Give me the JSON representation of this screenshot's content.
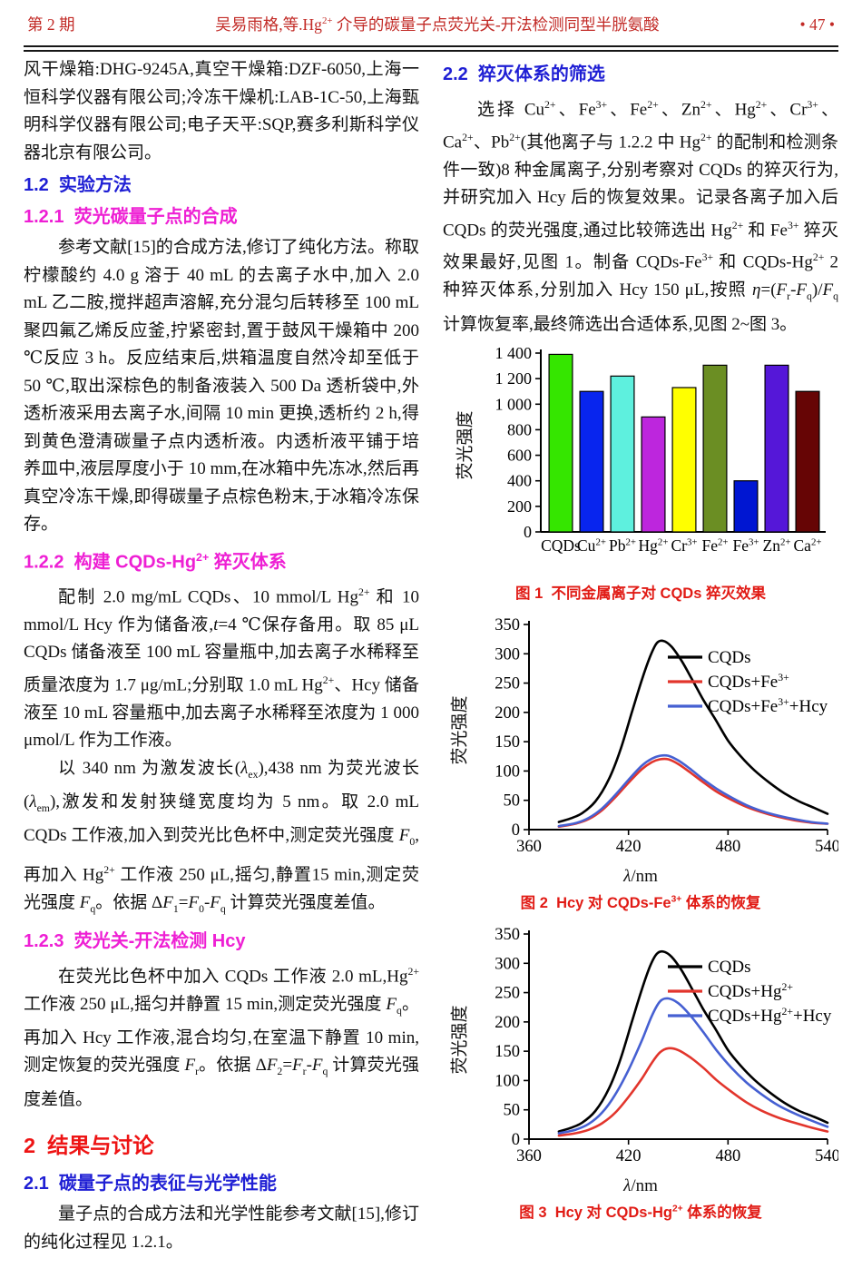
{
  "header": {
    "issue": "第 2 期",
    "title_html": "吴易雨格,等.Hg<sup>2+</sup> 介导的碳量子点荧光关-开法检测同型半胱氨酸",
    "page": "• 47 •"
  },
  "left_column": {
    "blocks": [
      {
        "kind": "p-cont",
        "html": "风干燥箱:DHG-9245A,真空干燥箱:DZF-6050,上海一恒科学仪器有限公司;冷冻干燥机:LAB-1C-50,上海甄明科学仪器有限公司;电子天平:SQP,赛多利斯科学仪器北京有限公司。"
      },
      {
        "kind": "h2b",
        "html": "1.2&nbsp;&nbsp;实验方法"
      },
      {
        "kind": "h3m",
        "html": "1.2.1&nbsp;&nbsp;荧光碳量子点的合成"
      },
      {
        "kind": "p",
        "html": "参考文献[15]的合成方法,修订了纯化方法。称取柠檬酸约 4.0 g 溶于 40 mL 的去离子水中,加入 2.0 mL 乙二胺,搅拌超声溶解,充分混匀后转移至 100 mL 聚四氟乙烯反应釜,拧紧密封,置于鼓风干燥箱中 200 ℃反应 3 h。反应结束后,烘箱温度自然冷却至低于 50 ℃,取出深棕色的制备液装入 500 Da 透析袋中,外透析液采用去离子水,间隔 10 min 更换,透析约 2 h,得到黄色澄清碳量子点内透析液。内透析液平铺于培养皿中,液层厚度小于 10 mm,在冰箱中先冻冰,然后再真空冷冻干燥,即得碳量子点棕色粉末,于冰箱冷冻保存。"
      },
      {
        "kind": "h3m",
        "html": "1.2.2&nbsp;&nbsp;构建 CQDs-Hg<sup>2+</sup> 猝灭体系"
      },
      {
        "kind": "p",
        "html": "配制 2.0 mg/mL CQDs、10 mmol/L Hg<sup>2+</sup> 和 10 mmol/L Hcy 作为储备液,<i>t</i>=4 ℃保存备用。取 85 μL CQDs 储备液至 100 mL 容量瓶中,加去离子水稀释至质量浓度为 1.7 μg/mL;分别取 1.0 mL Hg<sup>2+</sup>、Hcy 储备液至 10 mL 容量瓶中,加去离子水稀释至浓度为 1 000 μmol/L 作为工作液。"
      },
      {
        "kind": "p",
        "html": "以 340 nm 为激发波长(<i>λ</i><sub>ex</sub>),438 nm 为荧光波长(<i>λ</i><sub>em</sub>),激发和发射狭缝宽度均为 5 nm。取 2.0 mL CQDs 工作液,加入到荧光比色杯中,测定荧光强度 <i>F</i><sub>0</sub>,再加入 Hg<sup>2+</sup> 工作液 250 μL,摇匀,静置15 min,测定荧光强度 <i>F</i><sub>q</sub>。依据 Δ<i>F</i><sub>1</sub>=<i>F</i><sub>0</sub>-<i>F</i><sub>q</sub> 计算荧光强度差值。"
      },
      {
        "kind": "h3m",
        "html": "1.2.3&nbsp;&nbsp;荧光关-开法检测 Hcy"
      },
      {
        "kind": "p",
        "html": "在荧光比色杯中加入 CQDs 工作液 2.0 mL,Hg<sup>2+</sup> 工作液 250 μL,摇匀并静置 15 min,测定荧光强度 <i>F</i><sub>q</sub>。再加入 Hcy 工作液,混合均匀,在室温下静置 10 min,测定恢复的荧光强度 <i>F</i><sub>r</sub>。依据 Δ<i>F</i><sub>2</sub>=<i>F</i><sub>r</sub>-<i>F</i><sub>q</sub> 计算荧光强度差值。"
      },
      {
        "kind": "h1r",
        "html": "2&nbsp;&nbsp;结果与讨论"
      },
      {
        "kind": "h2b",
        "html": "2.1&nbsp;&nbsp;碳量子点的表征与光学性能"
      },
      {
        "kind": "p",
        "html": "量子点的合成方法和光学性能参考文献[15],修订的纯化过程见 1.2.1。"
      }
    ]
  },
  "right_column": {
    "blocks": [
      {
        "kind": "h2b",
        "html": "2.2&nbsp;&nbsp;猝灭体系的筛选"
      },
      {
        "kind": "p",
        "html": "选择 Cu<sup>2+</sup>、Fe<sup>3+</sup>、Fe<sup>2+</sup>、Zn<sup>2+</sup>、Hg<sup>2+</sup>、Cr<sup>3+</sup>、Ca<sup>2+</sup>、Pb<sup>2+</sup>(其他离子与 1.2.2 中 Hg<sup>2+</sup> 的配制和检测条件一致)8 种金属离子,分别考察对 CQDs 的猝灭行为,并研究加入 Hcy 后的恢复效果。记录各离子加入后 CQDs 的荧光强度,通过比较筛选出 Hg<sup>2+</sup> 和 Fe<sup>3+</sup> 猝灭效果最好,见图 1。制备 CQDs-Fe<sup>3+</sup> 和 CQDs-Hg<sup>2+</sup> 2 种猝灭体系,分别加入 Hcy 150 μL,按照 <i>η</i>=(<i>F</i><sub>r</sub>-<i>F</i><sub>q</sub>)/<i>F</i><sub>q</sub> 计算恢复率,最终筛选出合适体系,见图 2~图 3。"
      },
      {
        "kind": "figure",
        "chart": 0,
        "caption_html": "图 1&nbsp;&nbsp;不同金属离子对 CQDs 猝灭效果"
      },
      {
        "kind": "figure",
        "chart": 1,
        "caption_html": "图 2&nbsp;&nbsp;Hcy 对 CQDs-Fe<sup>3+</sup> 体系的恢复"
      },
      {
        "kind": "figure",
        "chart": 2,
        "caption_html": "图 3&nbsp;&nbsp;Hcy 对 CQDs-Hg<sup>2+</sup> 体系的恢复"
      }
    ]
  },
  "chart_data": [
    {
      "type": "bar",
      "title": "图 1 不同金属离子对 CQDs 猝灭效果",
      "ylabel": "荧光强度",
      "xlabel": "",
      "ylim": [
        0,
        1400
      ],
      "yticks": [
        {
          "v": 0,
          "label": "0"
        },
        {
          "v": 200,
          "label": "200"
        },
        {
          "v": 400,
          "label": "400"
        },
        {
          "v": 600,
          "label": "600"
        },
        {
          "v": 800,
          "label": "800"
        },
        {
          "v": 1000,
          "label": "1 000"
        },
        {
          "v": 1200,
          "label": "1 200"
        },
        {
          "v": 1400,
          "label": "1 400"
        }
      ],
      "categories": [
        "CQDs",
        "Cu^{2+}",
        "Pb^{2+}",
        "Hg^{2+}",
        "Cr^{3+}",
        "Fe^{2+}",
        "Fe^{3+}",
        "Zn^{2+}",
        "Ca^{2+}"
      ],
      "values": [
        1390,
        1100,
        1220,
        900,
        1130,
        1305,
        400,
        1305,
        1100
      ],
      "colors": [
        "#35e600",
        "#0825ee",
        "#5ef0de",
        "#bd26dd",
        "#ffff00",
        "#6b8e23",
        "#0016d2",
        "#5517d8",
        "#660505"
      ],
      "grid": false,
      "legend_position": "none"
    },
    {
      "type": "line",
      "title": "图 2 Hcy 对 CQDs-Fe3+ 体系的恢复",
      "ylabel": "荧光强度",
      "xlabel_html": "<i>λ</i>/nm",
      "xlim": [
        360,
        540
      ],
      "ylim": [
        0,
        350
      ],
      "xticks": [
        360,
        420,
        480,
        540
      ],
      "yticks": [
        0,
        50,
        100,
        150,
        200,
        250,
        300,
        350
      ],
      "grid": false,
      "legend_position": "upper-right",
      "series": [
        {
          "name": "CQDs",
          "color": "#000000",
          "x": [
            378,
            385,
            392,
            400,
            408,
            415,
            422,
            428,
            433,
            437,
            441,
            446,
            452,
            458,
            465,
            472,
            480,
            488,
            496,
            505,
            514,
            523,
            532,
            540
          ],
          "y": [
            13,
            19,
            28,
            48,
            85,
            135,
            200,
            255,
            295,
            318,
            322,
            312,
            288,
            258,
            222,
            190,
            152,
            124,
            101,
            80,
            62,
            48,
            37,
            27
          ]
        },
        {
          "name": "CQDs+Fe^{3+}",
          "color": "#e2352c",
          "x": [
            378,
            388,
            396,
            404,
            412,
            420,
            428,
            434,
            439,
            444,
            450,
            457,
            465,
            473,
            482,
            491,
            500,
            510,
            520,
            530,
            540
          ],
          "y": [
            5,
            10,
            18,
            33,
            55,
            80,
            103,
            115,
            120,
            120,
            112,
            98,
            81,
            65,
            51,
            39,
            30,
            22,
            16,
            12,
            10
          ]
        },
        {
          "name": "CQDs+Fe^{3+}+Hcy",
          "color": "#4660d2",
          "x": [
            378,
            388,
            396,
            404,
            412,
            420,
            428,
            434,
            439,
            444,
            450,
            457,
            465,
            473,
            482,
            491,
            500,
            510,
            520,
            530,
            540
          ],
          "y": [
            6,
            11,
            20,
            36,
            59,
            85,
            109,
            121,
            126,
            126,
            118,
            104,
            86,
            70,
            55,
            42,
            32,
            24,
            18,
            13,
            10
          ]
        }
      ]
    },
    {
      "type": "line",
      "title": "图 3 Hcy 对 CQDs-Hg2+ 体系的恢复",
      "ylabel": "荧光强度",
      "xlabel_html": "<i>λ</i>/nm",
      "xlim": [
        360,
        540
      ],
      "ylim": [
        0,
        350
      ],
      "xticks": [
        360,
        420,
        480,
        540
      ],
      "yticks": [
        0,
        50,
        100,
        150,
        200,
        250,
        300,
        350
      ],
      "grid": false,
      "legend_position": "upper-right",
      "series": [
        {
          "name": "CQDs",
          "color": "#000000",
          "x": [
            378,
            385,
            392,
            400,
            408,
            415,
            422,
            428,
            433,
            437,
            441,
            446,
            452,
            458,
            465,
            472,
            480,
            488,
            496,
            505,
            514,
            523,
            532,
            540
          ],
          "y": [
            13,
            19,
            28,
            48,
            85,
            135,
            200,
            255,
            295,
            316,
            320,
            311,
            288,
            258,
            222,
            190,
            152,
            124,
            101,
            80,
            62,
            48,
            38,
            28
          ]
        },
        {
          "name": "CQDs+Hg^{2+}",
          "color": "#e2352c",
          "x": [
            378,
            388,
            396,
            404,
            412,
            420,
            428,
            434,
            439,
            444,
            450,
            457,
            465,
            473,
            482,
            491,
            500,
            510,
            520,
            530,
            540
          ],
          "y": [
            6,
            10,
            16,
            27,
            45,
            72,
            103,
            130,
            148,
            155,
            152,
            140,
            122,
            101,
            81,
            63,
            49,
            37,
            28,
            20,
            13
          ]
        },
        {
          "name": "CQDs+Hg^{2+}+Hcy",
          "color": "#4660d2",
          "x": [
            378,
            388,
            396,
            404,
            412,
            420,
            428,
            434,
            439,
            444,
            450,
            457,
            465,
            473,
            482,
            491,
            500,
            510,
            520,
            530,
            540
          ],
          "y": [
            10,
            16,
            26,
            45,
            76,
            118,
            168,
            210,
            235,
            240,
            232,
            212,
            183,
            152,
            122,
            97,
            77,
            58,
            44,
            32,
            21
          ]
        }
      ]
    }
  ]
}
